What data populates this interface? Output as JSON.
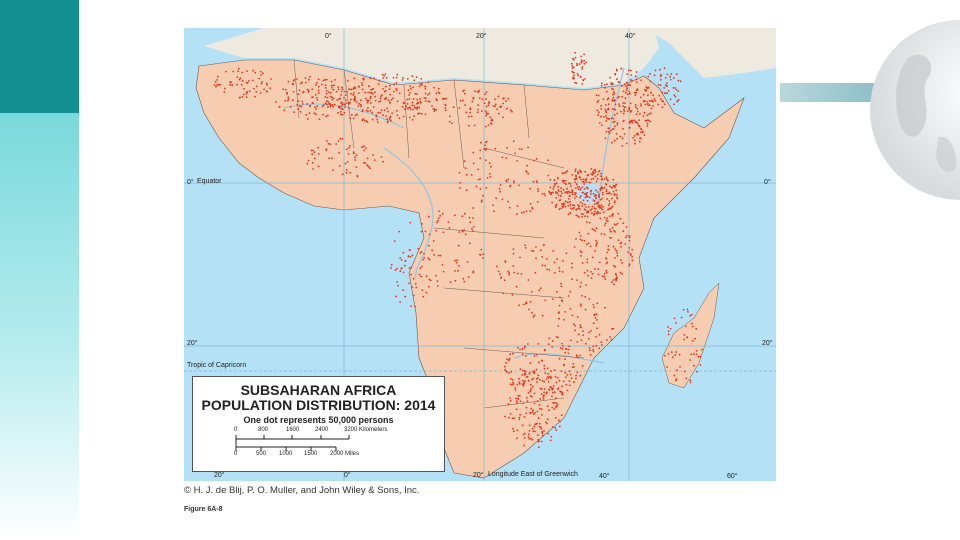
{
  "map": {
    "title_line1": "SUBSAHARAN AFRICA",
    "title_line2": "POPULATION DISTRIBUTION: 2014",
    "dot_note": "One dot represents 50,000 persons",
    "scale_km": [
      "0",
      "800",
      "1600",
      "2400",
      "3200 Kilometers"
    ],
    "scale_mi": [
      "0",
      "500",
      "1000",
      "1500",
      "2000 Miles"
    ],
    "top_longitudes": [
      "0°",
      "20°",
      "40°"
    ],
    "bottom_longitudes": [
      "20°",
      "0°",
      "20°",
      "40°",
      "60°"
    ],
    "longitude_label": "Longitude East of Greenwich",
    "equator_left": "0°",
    "equator_label": "Equator",
    "equator_right": "0°",
    "lat20_left": "20°",
    "lat20_right": "20°",
    "tropic_label": "Tropic of Capricorn",
    "colors": {
      "ocean": "#b5e1f6",
      "land_subsaharan": "#f6cdb0",
      "land_other": "#eeeadf",
      "dots": "#e8351f",
      "rivers": "#8cc8e6",
      "borders": "#6a5a50"
    }
  },
  "footer": {
    "copyright": "© H. J. de Blij, P. O. Muller, and John Wiley & Sons, Inc.",
    "figure": "Figure 6A-8"
  },
  "decor": {
    "globe": "globe-icon"
  }
}
